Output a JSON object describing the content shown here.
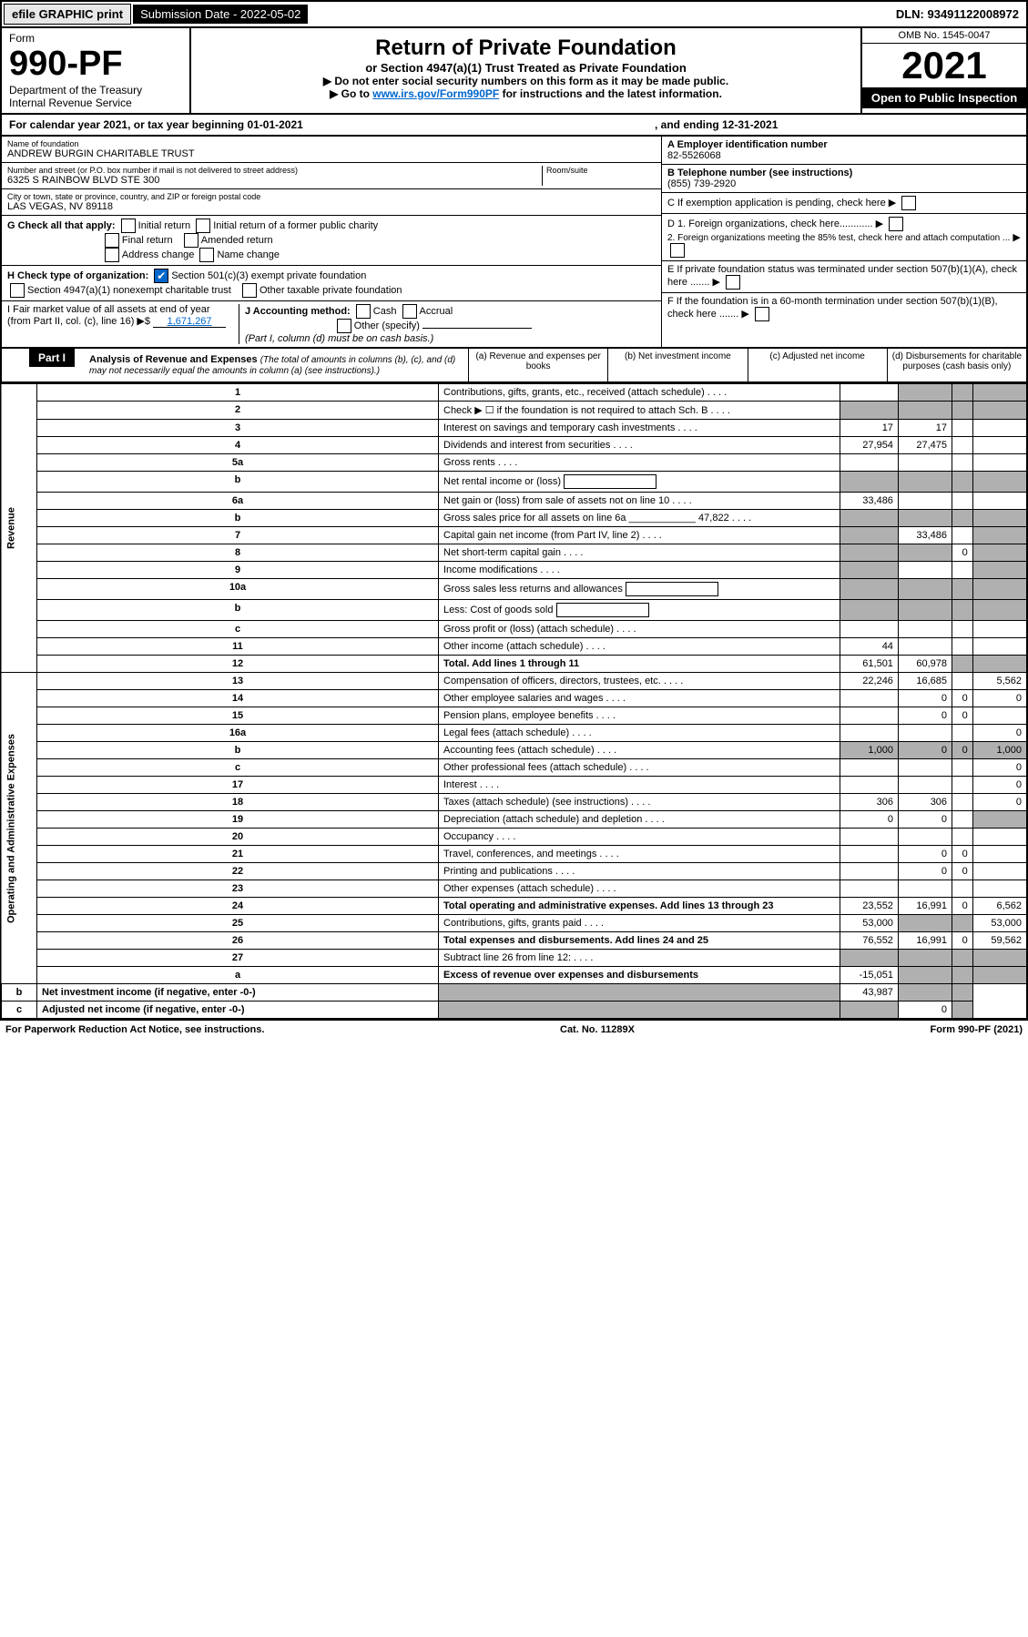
{
  "topbar": {
    "efile": "efile GRAPHIC print",
    "sub_label": "Submission Date - 2022-05-02",
    "dln": "DLN: 93491122008972"
  },
  "header": {
    "form_word": "Form",
    "form_no": "990-PF",
    "dept": "Department of the Treasury",
    "irs": "Internal Revenue Service",
    "title": "Return of Private Foundation",
    "subtitle": "or Section 4947(a)(1) Trust Treated as Private Foundation",
    "instr1": "▶ Do not enter social security numbers on this form as it may be made public.",
    "instr2_pre": "▶ Go to ",
    "instr2_link": "www.irs.gov/Form990PF",
    "instr2_post": " for instructions and the latest information.",
    "omb": "OMB No. 1545-0047",
    "year": "2021",
    "open": "Open to Public Inspection"
  },
  "cal": {
    "l": "For calendar year 2021, or tax year beginning 01-01-2021",
    "r": ", and ending 12-31-2021"
  },
  "id": {
    "name_lbl": "Name of foundation",
    "name": "ANDREW BURGIN CHARITABLE TRUST",
    "addr_lbl": "Number and street (or P.O. box number if mail is not delivered to street address)",
    "addr": "6325 S RAINBOW BLVD STE 300",
    "room": "Room/suite",
    "city_lbl": "City or town, state or province, country, and ZIP or foreign postal code",
    "city": "LAS VEGAS, NV  89118",
    "ein_lbl": "A Employer identification number",
    "ein": "82-5526068",
    "tel_lbl": "B Telephone number (see instructions)",
    "tel": "(855) 739-2920",
    "c": "C If exemption application is pending, check here",
    "g": "G Check all that apply:",
    "g1": "Initial return",
    "g2": "Initial return of a former public charity",
    "g3": "Final return",
    "g4": "Amended return",
    "g5": "Address change",
    "g6": "Name change",
    "d1": "D 1. Foreign organizations, check here............",
    "d2": "2. Foreign organizations meeting the 85% test, check here and attach computation ...",
    "h": "H Check type of organization:",
    "h1": "Section 501(c)(3) exempt private foundation",
    "h2": "Section 4947(a)(1) nonexempt charitable trust",
    "h3": "Other taxable private foundation",
    "e": "E If private foundation status was terminated under section 507(b)(1)(A), check here .......",
    "i_lbl": "I Fair market value of all assets at end of year (from Part II, col. (c), line 16)",
    "i_val": "1,671,267",
    "j": "J Accounting method:",
    "j1": "Cash",
    "j2": "Accrual",
    "j3": "Other (specify)",
    "j_note": "(Part I, column (d) must be on cash basis.)",
    "f": "F If the foundation is in a 60-month termination under section 507(b)(1)(B), check here ......."
  },
  "part1": {
    "label": "Part I",
    "title": "Analysis of Revenue and Expenses",
    "note": "(The total of amounts in columns (b), (c), and (d) may not necessarily equal the amounts in column (a) (see instructions).)",
    "col_a": "(a) Revenue and expenses per books",
    "col_b": "(b) Net investment income",
    "col_c": "(c) Adjusted net income",
    "col_d": "(d) Disbursements for charitable purposes (cash basis only)"
  },
  "sections": {
    "rev": "Revenue",
    "ope": "Operating and Administrative Expenses"
  },
  "rows": [
    {
      "n": "1",
      "d": "Contributions, gifts, grants, etc., received (attach schedule)"
    },
    {
      "n": "2",
      "d": "Check ▶ ☐ if the foundation is not required to attach Sch. B"
    },
    {
      "n": "3",
      "d": "Interest on savings and temporary cash investments",
      "a": "17",
      "b": "17"
    },
    {
      "n": "4",
      "d": "Dividends and interest from securities",
      "a": "27,954",
      "b": "27,475"
    },
    {
      "n": "5a",
      "d": "Gross rents"
    },
    {
      "n": "b",
      "d": "Net rental income or (loss)",
      "inline": true
    },
    {
      "n": "6a",
      "d": "Net gain or (loss) from sale of assets not on line 10",
      "a": "33,486"
    },
    {
      "n": "b",
      "d": "Gross sales price for all assets on line 6a",
      "inline_val": "47,822"
    },
    {
      "n": "7",
      "d": "Capital gain net income (from Part IV, line 2)",
      "b": "33,486"
    },
    {
      "n": "8",
      "d": "Net short-term capital gain",
      "c": "0"
    },
    {
      "n": "9",
      "d": "Income modifications"
    },
    {
      "n": "10a",
      "d": "Gross sales less returns and allowances",
      "inline": true
    },
    {
      "n": "b",
      "d": "Less: Cost of goods sold",
      "inline": true
    },
    {
      "n": "c",
      "d": "Gross profit or (loss) (attach schedule)"
    },
    {
      "n": "11",
      "d": "Other income (attach schedule)",
      "a": "44"
    },
    {
      "n": "12",
      "d": "Total. Add lines 1 through 11",
      "bold": true,
      "a": "61,501",
      "b": "60,978"
    },
    {
      "n": "13",
      "d": "Compensation of officers, directors, trustees, etc.",
      "a": "22,246",
      "b": "16,685",
      "dd": "5,562"
    },
    {
      "n": "14",
      "d": "Other employee salaries and wages",
      "b": "0",
      "c": "0",
      "dd": "0"
    },
    {
      "n": "15",
      "d": "Pension plans, employee benefits",
      "b": "0",
      "c": "0"
    },
    {
      "n": "16a",
      "d": "Legal fees (attach schedule)",
      "dd": "0"
    },
    {
      "n": "b",
      "d": "Accounting fees (attach schedule)",
      "a": "1,000",
      "b": "0",
      "c": "0",
      "dd": "1,000"
    },
    {
      "n": "c",
      "d": "Other professional fees (attach schedule)",
      "dd": "0"
    },
    {
      "n": "17",
      "d": "Interest",
      "dd": "0"
    },
    {
      "n": "18",
      "d": "Taxes (attach schedule) (see instructions)",
      "a": "306",
      "b": "306",
      "dd": "0"
    },
    {
      "n": "19",
      "d": "Depreciation (attach schedule) and depletion",
      "a": "0",
      "b": "0"
    },
    {
      "n": "20",
      "d": "Occupancy"
    },
    {
      "n": "21",
      "d": "Travel, conferences, and meetings",
      "b": "0",
      "c": "0"
    },
    {
      "n": "22",
      "d": "Printing and publications",
      "b": "0",
      "c": "0"
    },
    {
      "n": "23",
      "d": "Other expenses (attach schedule)"
    },
    {
      "n": "24",
      "d": "Total operating and administrative expenses. Add lines 13 through 23",
      "bold": true,
      "a": "23,552",
      "b": "16,991",
      "c": "0",
      "dd": "6,562"
    },
    {
      "n": "25",
      "d": "Contributions, gifts, grants paid",
      "a": "53,000",
      "dd": "53,000"
    },
    {
      "n": "26",
      "d": "Total expenses and disbursements. Add lines 24 and 25",
      "bold": true,
      "a": "76,552",
      "b": "16,991",
      "c": "0",
      "dd": "59,562"
    },
    {
      "n": "27",
      "d": "Subtract line 26 from line 12:"
    },
    {
      "n": "a",
      "d": "Excess of revenue over expenses and disbursements",
      "bold": true,
      "a": "-15,051"
    },
    {
      "n": "b",
      "d": "Net investment income (if negative, enter -0-)",
      "bold": true,
      "b": "43,987"
    },
    {
      "n": "c",
      "d": "Adjusted net income (if negative, enter -0-)",
      "bold": true,
      "c": "0"
    }
  ],
  "shade": {
    "1": [
      "b",
      "c",
      "dd"
    ],
    "2": [
      "a",
      "b",
      "c",
      "dd"
    ],
    "5b": [
      "a",
      "b",
      "c",
      "dd"
    ],
    "6b": [
      "a",
      "b",
      "c",
      "dd"
    ],
    "7": [
      "a",
      "dd"
    ],
    "8": [
      "a",
      "b",
      "dd"
    ],
    "9": [
      "a",
      "dd"
    ],
    "10a": [
      "a",
      "b",
      "c",
      "dd"
    ],
    "10b": [
      "a",
      "b",
      "c",
      "dd"
    ],
    "12": [
      "c",
      "dd"
    ],
    "19": [
      "dd"
    ],
    "25": [
      "b",
      "c"
    ],
    "27": [
      "a",
      "b",
      "c",
      "dd"
    ],
    "27a": [
      "b",
      "c",
      "dd"
    ],
    "27b": [
      "a",
      "c",
      "dd"
    ],
    "27c": [
      "a",
      "b",
      "dd"
    ]
  },
  "footer": {
    "l": "For Paperwork Reduction Act Notice, see instructions.",
    "m": "Cat. No. 11289X",
    "r": "Form 990-PF (2021)"
  }
}
